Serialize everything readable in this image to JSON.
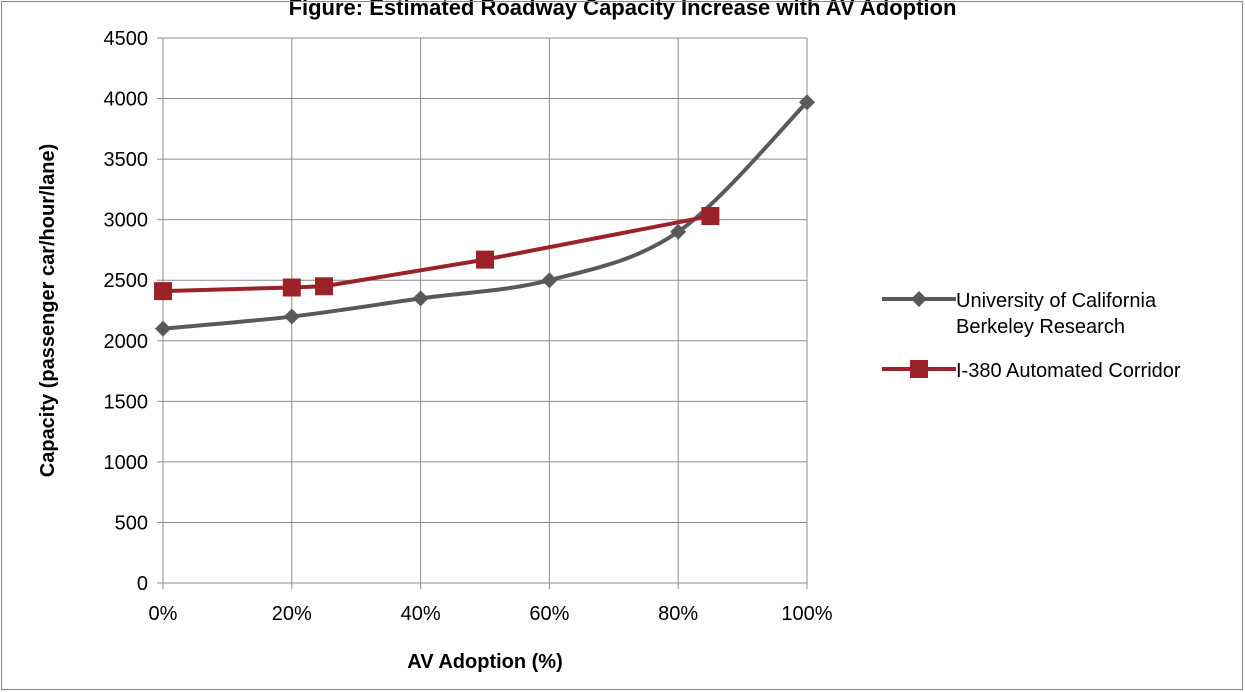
{
  "chart_data": {
    "type": "line",
    "title": "Figure: Estimated Roadway Capacity Increase with AV Adoption",
    "xlabel": "AV Adoption (%)",
    "ylabel": "Capacity (passenger car/hour/lane)",
    "xlim": [
      0,
      100
    ],
    "ylim": [
      0,
      4500
    ],
    "x_ticks": [
      "0%",
      "20%",
      "40%",
      "60%",
      "80%",
      "100%"
    ],
    "y_ticks": [
      "0",
      "500",
      "1000",
      "1500",
      "2000",
      "2500",
      "3000",
      "3500",
      "4000",
      "4500"
    ],
    "grid": true,
    "legend_position": "right",
    "series": [
      {
        "name": "University of California Berkeley Research",
        "color": "#595959",
        "marker": "diamond",
        "smooth": true,
        "x": [
          0,
          20,
          40,
          60,
          80,
          100
        ],
        "y": [
          2100,
          2200,
          2350,
          2500,
          2900,
          3970
        ]
      },
      {
        "name": "I-380 Automated Corridor",
        "color": "#9B2226",
        "marker": "square",
        "smooth": false,
        "x": [
          0,
          20,
          25,
          50,
          85
        ],
        "y": [
          2410,
          2440,
          2450,
          2670,
          3030
        ]
      }
    ]
  }
}
